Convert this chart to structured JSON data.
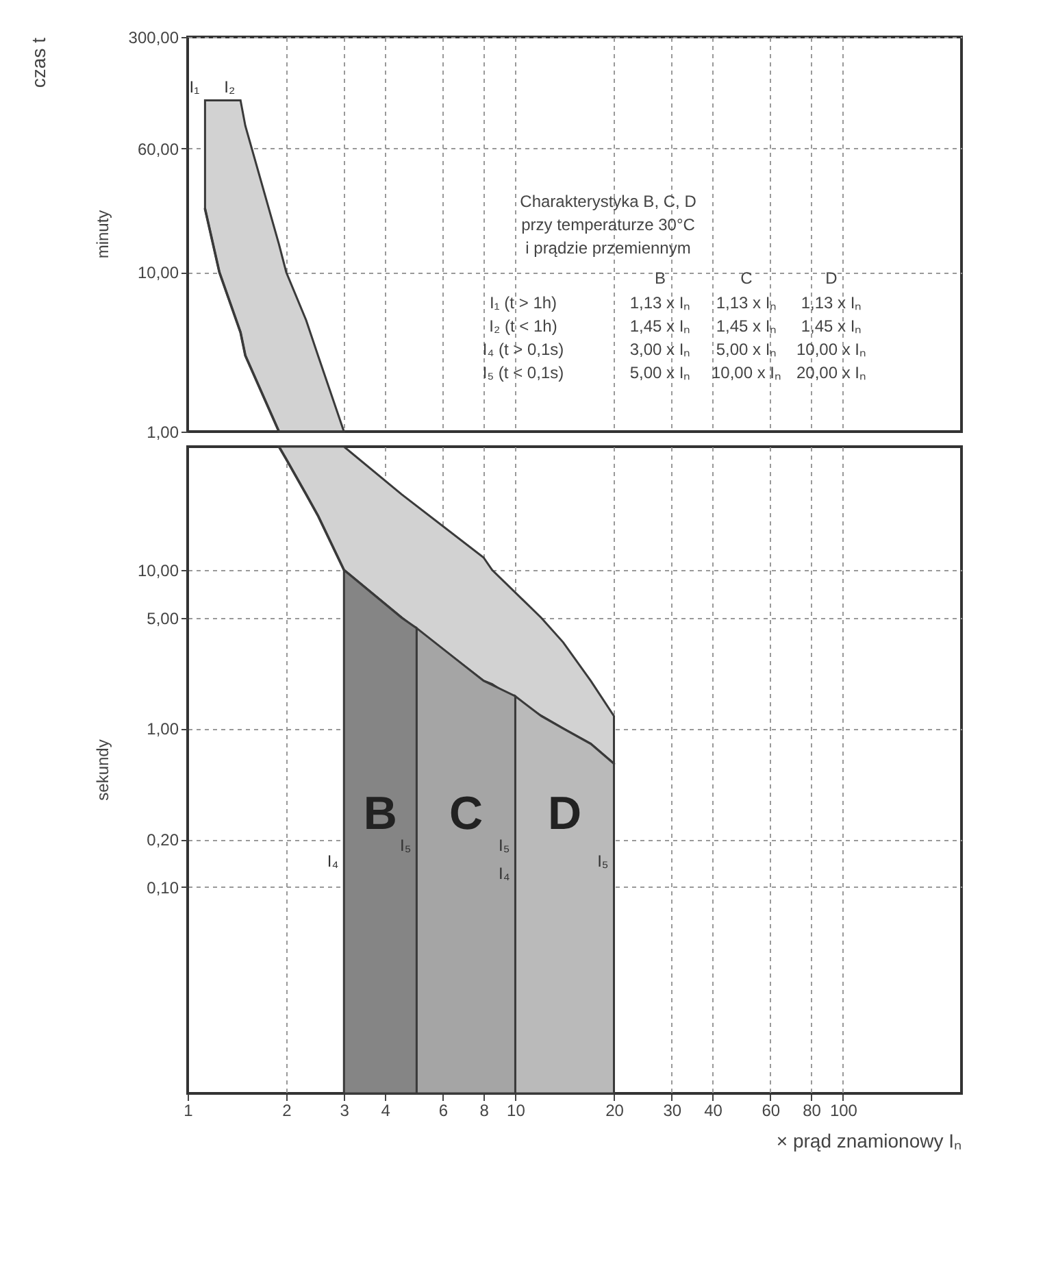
{
  "chart_data": [
    {
      "type": "line",
      "ylabel": "czas t",
      "xlim": [
        1,
        230
      ],
      "xticks": [
        1,
        2,
        3,
        4,
        6,
        8,
        10,
        20,
        30,
        40,
        60,
        80,
        100
      ],
      "ylim": [
        1,
        300
      ],
      "yticks": [
        {
          "value": 1,
          "label": "1,00"
        },
        {
          "value": 10,
          "label": "10,00"
        },
        {
          "value": 60,
          "label": "60,00"
        },
        {
          "value": 300,
          "label": "300,00"
        }
      ],
      "log": "xy",
      "grid": true,
      "tick_labels": "y",
      "series": [
        {
          "color": "#3a3a3a",
          "x": [
            1.13,
            1.25,
            1.45,
            1.5,
            1.9,
            2,
            2.3,
            2.5,
            3
          ],
          "values": [
            25,
            10,
            4.2,
            3,
            1,
            1,
            1,
            1,
            1
          ],
          "lower": [
            25,
            10,
            4.2,
            3,
            1,
            1,
            1,
            1,
            1
          ],
          "upper": [
            120,
            120,
            120,
            83,
            15,
            10,
            5,
            3,
            1
          ]
        }
      ],
      "annotations": [
        "minuty",
        "Charakterystyka  B, C, D",
        "przy temperaturze 30°C",
        "i prądzie przemiennym",
        "B",
        "C",
        "D",
        "I₁ (t > 1h)",
        "1,13 x Iₙ",
        "1,13 x Iₙ",
        "1,13 x Iₙ",
        "I₂ (t < 1h)",
        "1,45 x Iₙ",
        "1,45 x Iₙ",
        "1,45 x Iₙ",
        "I₄ (t > 0,1s)",
        "3,00 x Iₙ",
        "5,00 x Iₙ",
        "10,00 x Iₙ",
        "I₅ (t < 0,1s)",
        "5,00 x Iₙ",
        "10,00 x Iₙ",
        "20,00 x Iₙ",
        {
          "text": "I₁",
          "x": 1.13,
          "y": 120
        },
        {
          "text": "I₂",
          "x": 1.45,
          "y": 120
        }
      ]
    },
    {
      "type": "area",
      "xlabel": "× prąd znamionowy Iₙ",
      "xlim": [
        1,
        230
      ],
      "xticks": [
        1,
        2,
        3,
        4,
        6,
        8,
        10,
        20,
        30,
        40,
        60,
        80,
        100
      ],
      "ylim": [
        0.005,
        60
      ],
      "yticks": [
        {
          "value": 0.1,
          "label": "0,10"
        },
        {
          "value": 0.2,
          "label": "0,20"
        },
        {
          "value": 1,
          "label": "1,00"
        },
        {
          "value": 5,
          "label": "5,00"
        },
        {
          "value": 10,
          "label": "10,00"
        }
      ],
      "log": "xy",
      "grid": true,
      "series": [
        {
          "type": "line",
          "color": "#3a3a3a",
          "x": [
            1.9,
            2,
            2.3,
            2.5,
            3,
            4.5,
            8,
            8.5,
            12,
            14,
            17,
            20
          ],
          "values": [
            60,
            50,
            30,
            22,
            10,
            5,
            2,
            1.9,
            1.2,
            1,
            0.8,
            0.6
          ],
          "lower": [
            60,
            50,
            30,
            22,
            10,
            5,
            2,
            1.9,
            1.2,
            1,
            0.8,
            0.6
          ],
          "upper": [
            60,
            60,
            60,
            60,
            60,
            30,
            12,
            10,
            5,
            3.5,
            2,
            1.2
          ]
        },
        {
          "color": "#858585",
          "x": [
            3,
            4.5,
            5
          ],
          "values": [
            10,
            5,
            4.3
          ]
        },
        {
          "color": "#a5a5a5",
          "x": [
            5,
            8,
            10
          ],
          "values": [
            4.3,
            2,
            1.6
          ]
        },
        {
          "color": "#bababa",
          "x": [
            10,
            12,
            14,
            17,
            20
          ],
          "values": [
            1.6,
            1.2,
            1,
            0.8,
            0.6
          ]
        }
      ],
      "annotations": [
        "sekundy",
        "B",
        "C",
        "D",
        {
          "text": "I₄",
          "x": 3,
          "y": 0.12
        },
        {
          "text": "I₅",
          "x": 5,
          "y": 0.15
        },
        {
          "text": "I₄",
          "x": 10,
          "y": 0.1
        },
        {
          "text": "I₅",
          "x": 10,
          "y": 0.15
        },
        {
          "text": "I₅",
          "x": 20,
          "y": 0.12
        }
      ]
    }
  ]
}
